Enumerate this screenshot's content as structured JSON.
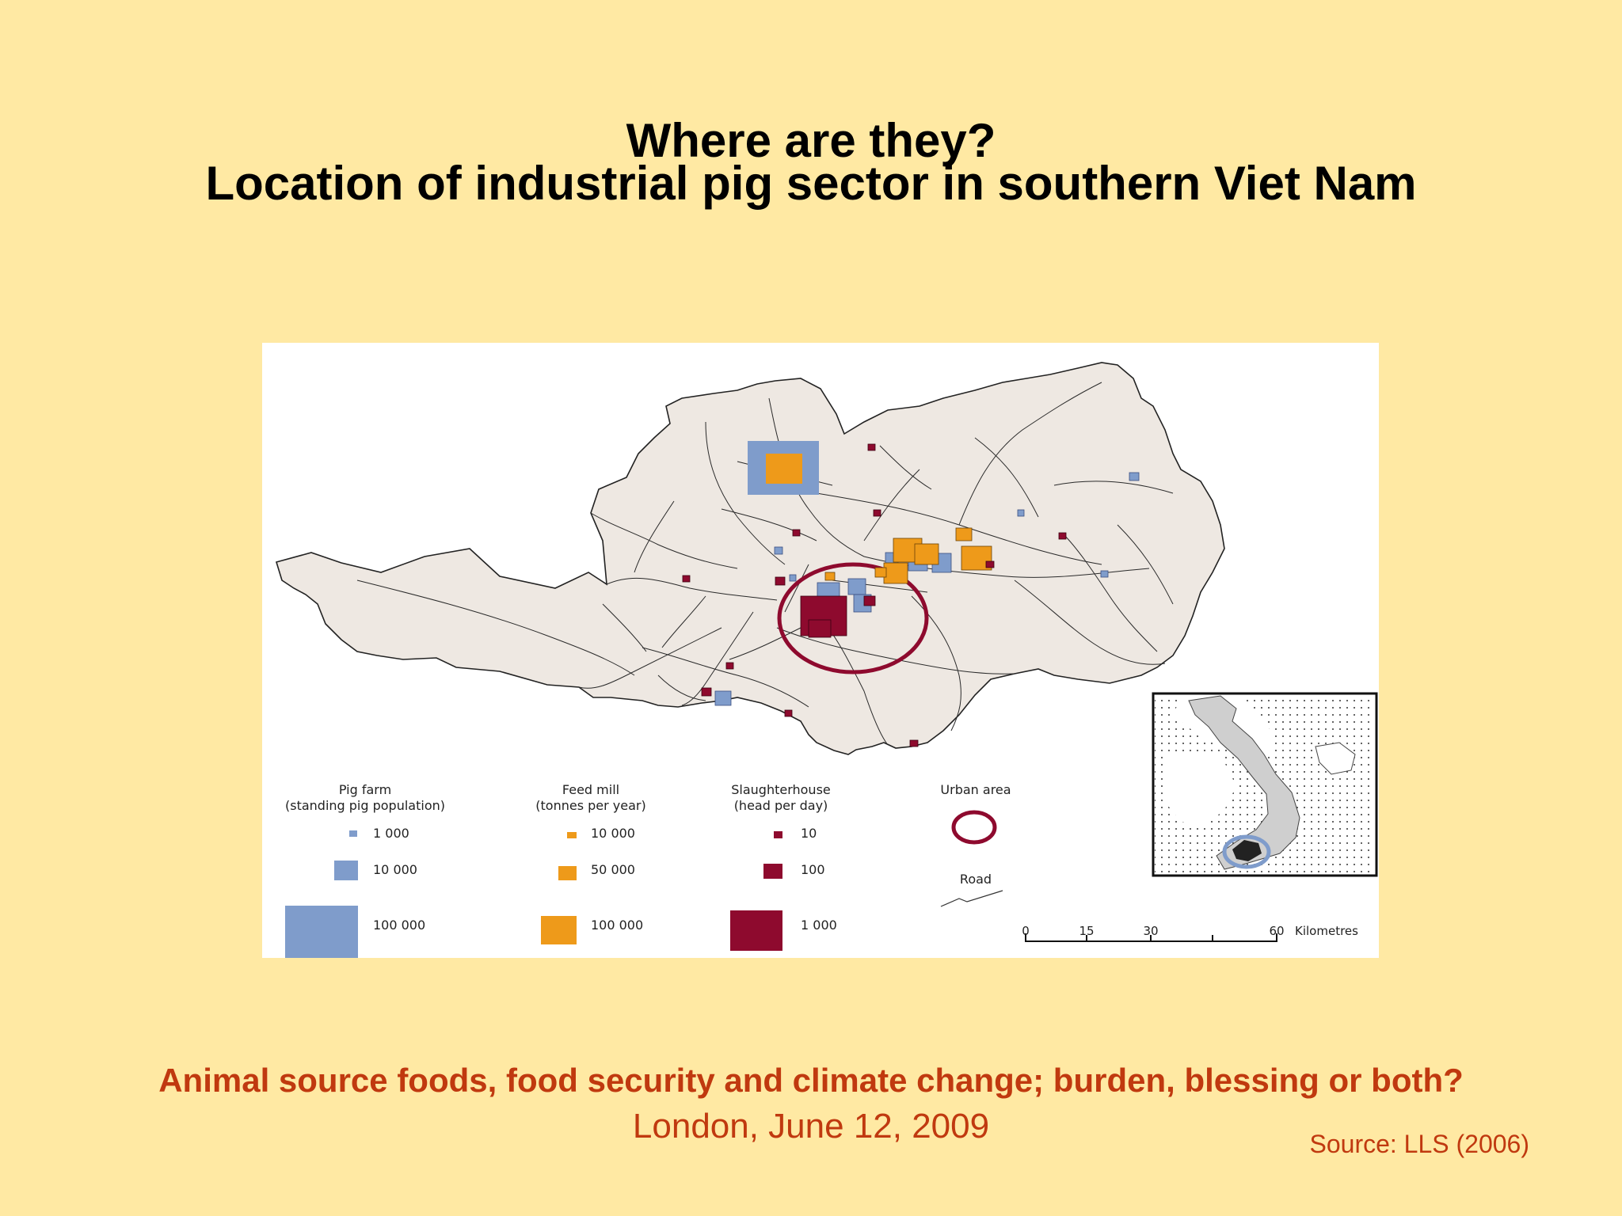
{
  "slide": {
    "title_line1": "Where are they?",
    "title_line2": "Location of industrial pig sector in southern Viet Nam",
    "conference": "Animal source foods, food security and climate change; burden, blessing or both?",
    "date_place": "London, June 12, 2009",
    "source": "Source:  LLS (2006)"
  },
  "legend": {
    "pig_farm": {
      "title": "Pig farm",
      "subtitle": "(standing pig population)",
      "items": [
        "1 000",
        "10 000",
        "100 000"
      ],
      "color": "#7F9CCB"
    },
    "feed_mill": {
      "title": "Feed mill",
      "subtitle": "(tonnes per year)",
      "items": [
        "10 000",
        "50 000",
        "100 000"
      ],
      "color": "#EE9A1A"
    },
    "slaughterhouse": {
      "title": "Slaughterhouse",
      "subtitle": "(head per day)",
      "items": [
        "10",
        "100",
        "1 000"
      ],
      "color": "#8E0A2E"
    },
    "urban_area": {
      "title": "Urban area"
    },
    "road": {
      "title": "Road"
    }
  },
  "scale_bar": {
    "ticks": [
      "0",
      "15",
      "30",
      "60"
    ],
    "unit": "Kilometres"
  },
  "colors": {
    "background": "#FFE9A3",
    "land": "#EEE8E2",
    "title_text": "#000000",
    "footer_text": "#C0390F"
  }
}
